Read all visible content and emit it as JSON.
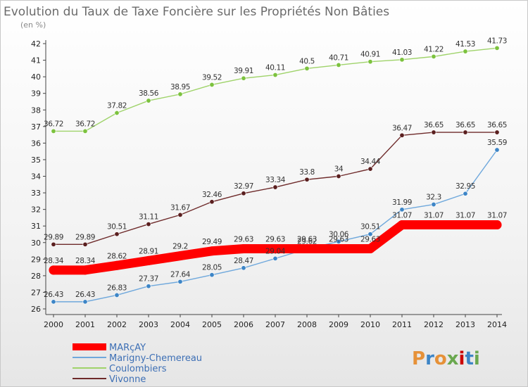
{
  "chart_data": {
    "type": "line",
    "title": "Evolution du Taux de Taxe Foncière sur les Propriétés Non Bâties",
    "subtitle": "(en %)",
    "x": [
      2000,
      2001,
      2002,
      2003,
      2004,
      2005,
      2006,
      2007,
      2008,
      2009,
      2010,
      2011,
      2012,
      2013,
      2014
    ],
    "ylim": [
      26,
      42
    ],
    "yticks": [
      26,
      27,
      28,
      29,
      30,
      31,
      32,
      33,
      34,
      35,
      36,
      37,
      38,
      39,
      40,
      41,
      42
    ],
    "grid": false,
    "legend_position": "bottom-left",
    "series": [
      {
        "name": "Vivonne",
        "color": "#6e2a2a",
        "marker_color": "#5a1f1f",
        "values": [
          29.89,
          29.89,
          30.51,
          31.11,
          31.67,
          32.46,
          32.97,
          33.34,
          33.8,
          34,
          34.44,
          36.47,
          36.65,
          36.65,
          36.65
        ],
        "labels": [
          "29.89",
          "29.89",
          "30.51",
          "31.11",
          "31.67",
          "32.46",
          "32.97",
          "33.34",
          "33.8",
          "34",
          "34.44",
          "36.47",
          "36.65",
          "36.65",
          "36.65"
        ]
      },
      {
        "name": "Coulombiers",
        "color": "#9fd36a",
        "marker_color": "#7cc23e",
        "values": [
          36.72,
          36.72,
          37.82,
          38.56,
          38.95,
          39.52,
          39.91,
          40.11,
          40.5,
          40.71,
          40.91,
          41.03,
          41.22,
          41.53,
          41.73
        ],
        "labels": [
          "36.72",
          "36.72",
          "37.82",
          "38.56",
          "38.95",
          "39.52",
          "39.91",
          "40.11",
          "40.5",
          "40.71",
          "40.91",
          "41.03",
          "41.22",
          "41.53",
          "41.73"
        ]
      },
      {
        "name": "Marigny-Chemereau",
        "color": "#6fa8dc",
        "marker_color": "#3d85c6",
        "values": [
          26.43,
          26.43,
          26.83,
          27.37,
          27.64,
          28.05,
          28.47,
          29.04,
          29.62,
          30.06,
          30.51,
          31.99,
          32.3,
          32.95,
          35.59
        ],
        "labels": [
          "26.43",
          "26.43",
          "26.83",
          "27.37",
          "27.64",
          "28.05",
          "28.47",
          "29.04",
          "29.62",
          "30.06",
          "30.51",
          "31.99",
          "32.3",
          "32.95",
          "35.59"
        ]
      },
      {
        "name": "MARçAY",
        "color": "#ff0000",
        "marker_color": "#ff0000",
        "values": [
          28.34,
          28.34,
          28.62,
          28.91,
          29.2,
          29.49,
          29.63,
          29.63,
          29.63,
          29.63,
          29.63,
          31.07,
          31.07,
          31.07,
          31.07
        ],
        "labels": [
          "28.34",
          "28.34",
          "28.62",
          "28.91",
          "29.2",
          "29.49",
          "29.63",
          "29.63",
          "29.63",
          "29.63",
          "29.63",
          "31.07",
          "31.07",
          "31.07",
          "31.07"
        ]
      }
    ],
    "legend_order": [
      "MARçAY",
      "Marigny-Chemereau",
      "Coulombiers",
      "Vivonne"
    ]
  },
  "brand": {
    "letters": [
      "P",
      "r",
      "o",
      "x",
      "i",
      "t",
      "i"
    ],
    "colors": [
      "#e69138",
      "#3d85c6",
      "#e69138",
      "#6aa84f",
      "#cc0000",
      "#3d85c6",
      "#6aa84f"
    ]
  }
}
